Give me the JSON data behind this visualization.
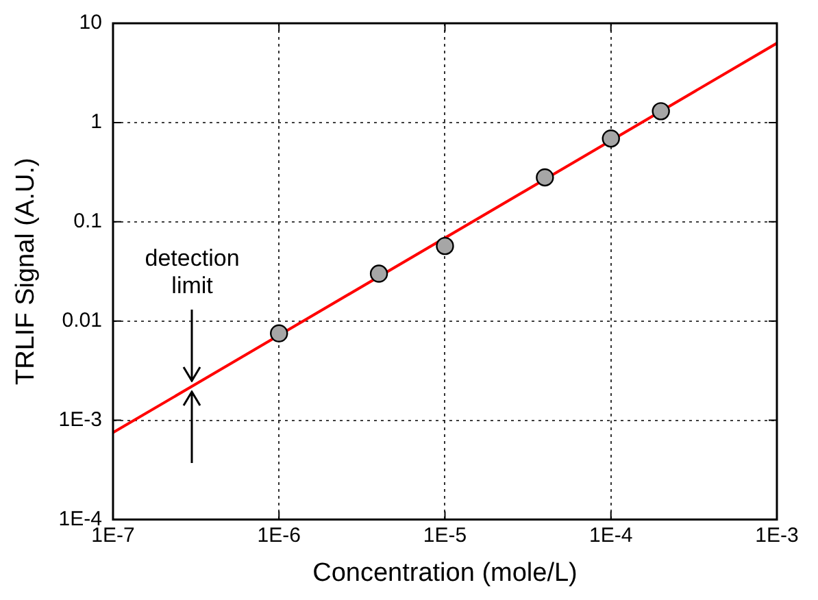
{
  "chart_data": {
    "type": "scatter",
    "xlabel": "Concentration (mole/L)",
    "ylabel": "TRLIF Signal (A.U.)",
    "log": "xy",
    "grid": true,
    "legend": false,
    "xlim": [
      1e-07,
      0.001
    ],
    "ylim": [
      0.0001,
      10
    ],
    "xticks": [
      {
        "value": 1e-07,
        "label": "1E-7"
      },
      {
        "value": 1e-06,
        "label": "1E-6"
      },
      {
        "value": 1e-05,
        "label": "1E-5"
      },
      {
        "value": 0.0001,
        "label": "1E-4"
      },
      {
        "value": 0.001,
        "label": "1E-3"
      }
    ],
    "yticks": [
      {
        "value": 0.0001,
        "label": "1E-4"
      },
      {
        "value": 0.001,
        "label": "1E-3"
      },
      {
        "value": 0.01,
        "label": "0.01"
      },
      {
        "value": 0.1,
        "label": "0.1"
      },
      {
        "value": 1,
        "label": "1"
      },
      {
        "value": 10,
        "label": "10"
      }
    ],
    "series": [
      {
        "type": "scatter",
        "color": "#a6a6a6",
        "marker": "circle",
        "x": [
          1e-06,
          4e-06,
          1e-05,
          4e-05,
          0.0001,
          0.0002
        ],
        "values": [
          0.0075,
          0.03,
          0.057,
          0.28,
          0.69,
          1.3
        ]
      },
      {
        "type": "line",
        "color": "#ff0000",
        "marker": "none",
        "line_style": "solid",
        "x": [
          1e-07,
          0.001
        ],
        "values": [
          0.00075,
          6.3
        ]
      }
    ],
    "annotations": [
      {
        "text": "detection\nlimit",
        "x": 3e-07,
        "y": 0.0022
      }
    ]
  }
}
